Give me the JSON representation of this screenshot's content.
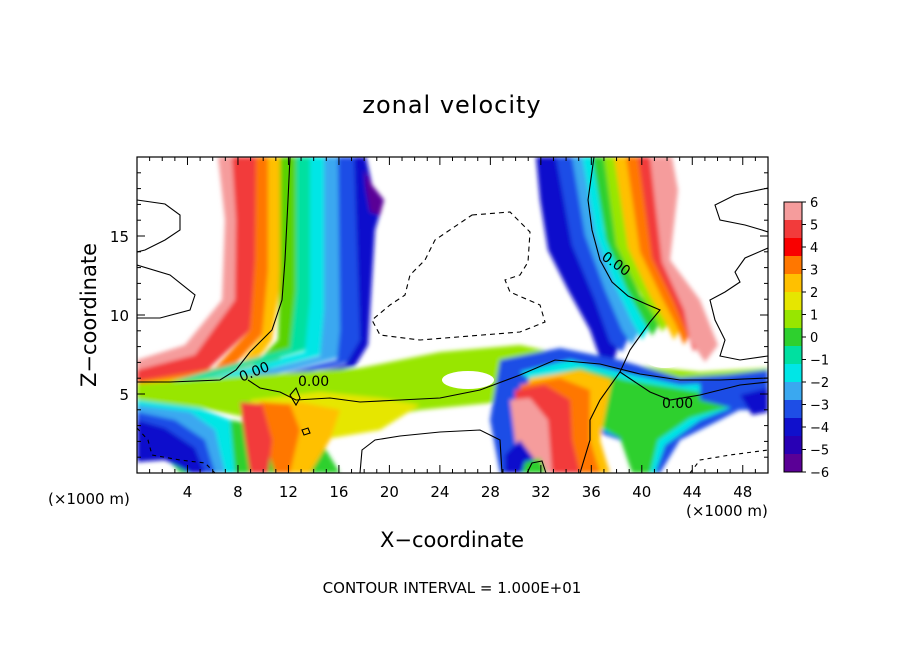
{
  "chart_data": {
    "type": "heatmap",
    "title": "zonal velocity",
    "xlabel": "X−coordinate",
    "ylabel": "Z−coordinate",
    "x_unit_left": "(×1000 m)",
    "x_unit_right": "(×1000 m)",
    "xlim": [
      0,
      50
    ],
    "ylim": [
      0,
      20
    ],
    "x_ticks": [
      4,
      8,
      12,
      16,
      20,
      24,
      28,
      32,
      36,
      40,
      44,
      48
    ],
    "y_ticks": [
      5,
      10,
      15
    ],
    "colorbar": {
      "ticks": [
        "6",
        "5",
        "4",
        "3",
        "2",
        "1",
        "0",
        "−1",
        "−2",
        "−3",
        "−4",
        "−5",
        "−6"
      ],
      "colors": [
        "#f59c9c",
        "#f23b3b",
        "#f90000",
        "#ff7700",
        "#ffc000",
        "#e6e600",
        "#98e600",
        "#2ed02e",
        "#00e0a0",
        "#00e6e6",
        "#3aa8f0",
        "#1e4ee6",
        "#1010cc",
        "#2800b4",
        "#5a0096"
      ]
    },
    "contour_labels": [
      "0.00",
      "0.00",
      "0.00",
      "0.00"
    ],
    "footer": "CONTOUR INTERVAL = 1.000E+01"
  }
}
